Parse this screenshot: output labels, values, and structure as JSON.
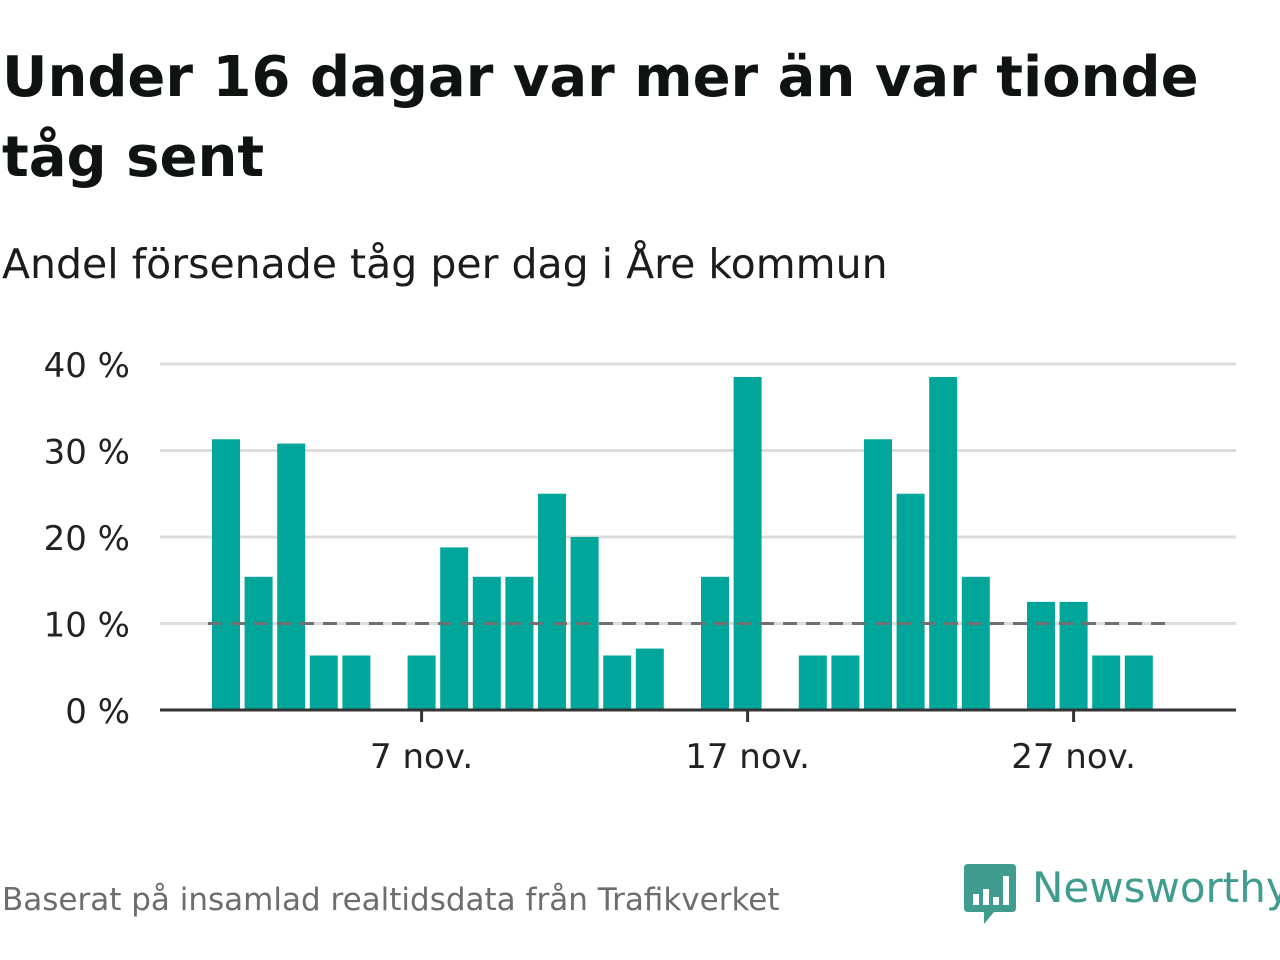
{
  "title": "Under 16 dagar var mer än var tionde tåg sent",
  "subtitle": "Andel försenade tåg per dag i Åre kommun",
  "footer": "Baserat på insamlad realtidsdata från Trafikverket",
  "brand": {
    "name": "Newsworthy",
    "logo_icon": "chart-speech-bubble-icon",
    "color": "#3f9c8e"
  },
  "colors": {
    "bar": "#00a699",
    "reference_line": "#707070",
    "grid": "#dcdcdc",
    "axis": "#333333"
  },
  "chart_data": {
    "type": "bar",
    "x_start": "2022-11-01",
    "x_end": "2022-11-30",
    "x_unit": "day",
    "x": [
      1,
      2,
      3,
      4,
      5,
      6,
      7,
      8,
      9,
      10,
      11,
      12,
      13,
      14,
      15,
      16,
      17,
      18,
      19,
      20,
      21,
      22,
      23,
      24,
      25,
      26,
      27,
      28,
      29,
      30
    ],
    "values": [
      31.3,
      15.4,
      30.8,
      6.3,
      6.3,
      null,
      6.3,
      18.8,
      15.4,
      15.4,
      25,
      20,
      6.3,
      7.1,
      null,
      15.4,
      38.5,
      null,
      6.3,
      6.3,
      31.3,
      25,
      38.5,
      15.4,
      null,
      12.5,
      12.5,
      6.3,
      6.3,
      null
    ],
    "ylim": [
      0,
      40
    ],
    "y_ticks": [
      0,
      10,
      20,
      30,
      40
    ],
    "y_tick_labels": [
      "0 %",
      "10 %",
      "20 %",
      "30 %",
      "40 %"
    ],
    "x_ticks": [
      7,
      17,
      27
    ],
    "x_tick_labels": [
      "7 nov.",
      "17 nov.",
      "27 nov."
    ],
    "reference_line": {
      "value": 10,
      "style": "dashed"
    },
    "grid": true,
    "legend": "none"
  }
}
